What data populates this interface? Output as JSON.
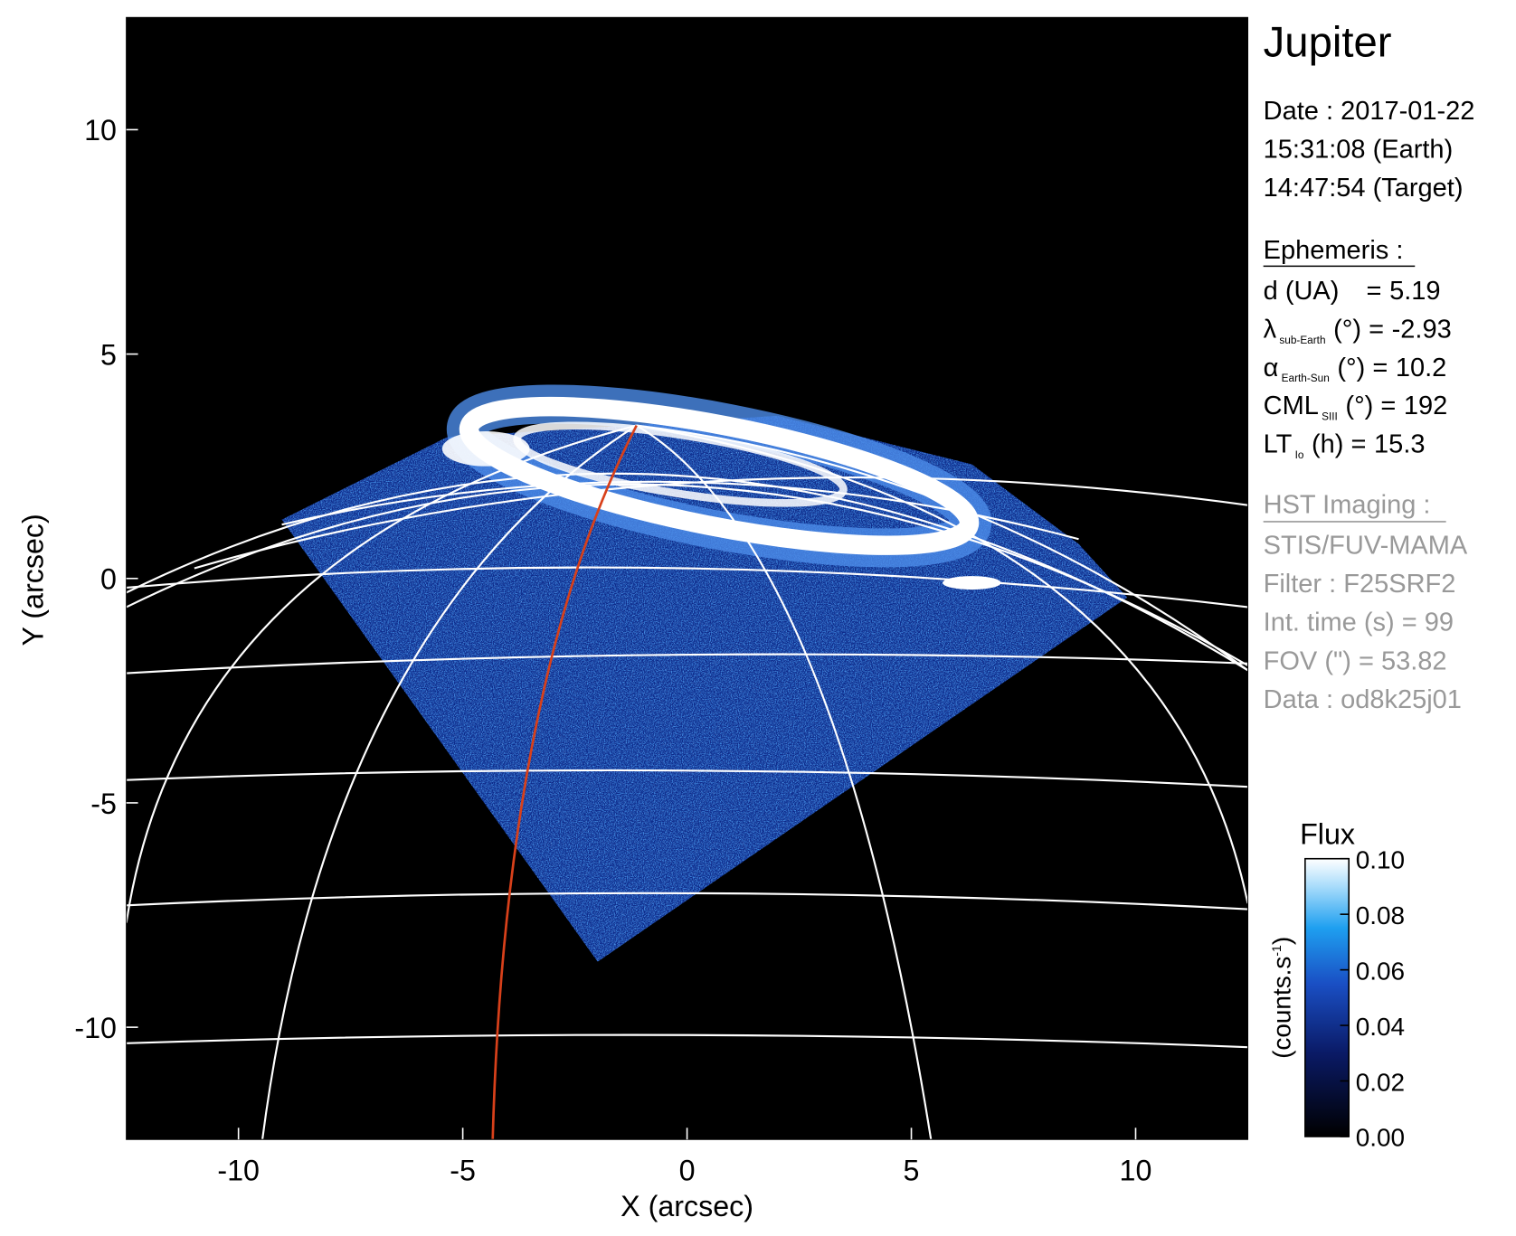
{
  "chart_data": {
    "type": "image",
    "title": "Jupiter",
    "xlabel": "X (arcsec)",
    "ylabel": "Y (arcsec)",
    "xlim": [
      -12.5,
      12.5
    ],
    "ylim": [
      -12.5,
      12.5
    ],
    "xticks": [
      -10,
      -5,
      0,
      5,
      10
    ],
    "yticks": [
      -10,
      -5,
      0,
      5,
      10
    ],
    "date_lines": [
      "Date : 2017-01-22",
      "15:31:08 (Earth)",
      "14:47:54 (Target)"
    ],
    "ephemeris": {
      "heading": "Ephemeris :",
      "rows": [
        {
          "main": "d (UA)",
          "suffix": "=",
          "value": 5.19
        },
        {
          "main": "λ",
          "sub": "sub-Earth",
          "suffix": "(°) =",
          "value": -2.93
        },
        {
          "main": "α",
          "sub": "Earth-Sun",
          "suffix": "(°) =",
          "value": 10.2
        },
        {
          "main": "CML",
          "sub": "SIII",
          "suffix": "(°) =",
          "value": 192
        },
        {
          "main": "LT",
          "sub": "Io",
          "suffix": "(h) =",
          "value": 15.3
        }
      ]
    },
    "imaging": {
      "heading": "HST Imaging :",
      "lines": [
        "STIS/FUV-MAMA",
        "Filter : F25SRF2",
        "Int. time (s) = 99",
        "FOV (\") = 53.82",
        "Data : od8k25j01"
      ]
    },
    "colorbar": {
      "title": "Flux",
      "label": {
        "text": "(counts.s",
        "sup": "-1",
        "close": ")"
      },
      "lim": [
        0,
        0.1
      ],
      "ticks": [
        {
          "value": 0,
          "label": "0.00"
        },
        {
          "value": 0.02,
          "label": "0.02"
        },
        {
          "value": 0.04,
          "label": "0.04"
        },
        {
          "value": 0.06,
          "label": "0.06"
        },
        {
          "value": 0.08,
          "label": "0.08"
        },
        {
          "value": 0.1,
          "label": "0.10"
        }
      ]
    }
  }
}
